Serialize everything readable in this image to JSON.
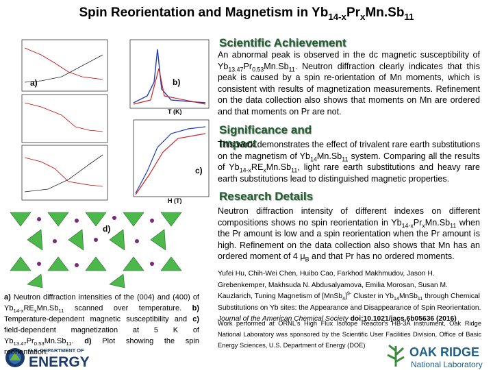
{
  "header": {
    "title": [
      {
        "text": "Spin Reorientation and Magnetism in Yb"
      },
      {
        "text": "14-x",
        "sub": true
      },
      {
        "text": "Pr"
      },
      {
        "text": "x",
        "sub": true
      },
      {
        "text": "Mn.Sb"
      },
      {
        "text": "11",
        "sub": true
      }
    ]
  },
  "sections": [
    {
      "heading": "Scientific Achievement",
      "body": [
        {
          "text": "An abnormal peak is observed in the dc magnetic susceptibility of Yb"
        },
        {
          "text": "13.47",
          "sub": true
        },
        {
          "text": "Pr"
        },
        {
          "text": "0.53",
          "sub": true
        },
        {
          "text": "Mn.Sb"
        },
        {
          "text": "11",
          "sub": true
        },
        {
          "text": ". Neutron diffraction clearly indicates that this peak is caused by a spin re-orientation of Mn moments, which is consistent with results of magnetization measurements. Refinement on the data collection also shows that moments on Mn are ordered and that moments on Pr are not."
        }
      ]
    },
    {
      "heading": "Significance and Impact",
      "body": [
        {
          "text": "This work demonstrates the effect of trivalent rare earth substitutions on the magnetism of Yb"
        },
        {
          "text": "14",
          "sub": true
        },
        {
          "text": "Mn.Sb"
        },
        {
          "text": "11",
          "sub": true
        },
        {
          "text": " system. Comparing all the results of Yb"
        },
        {
          "text": "14-x",
          "sub": true
        },
        {
          "text": "RE"
        },
        {
          "text": "x",
          "sub": true
        },
        {
          "text": "Mn.Sb"
        },
        {
          "text": "11",
          "sub": true
        },
        {
          "text": ", light rare earth substitutions and heavy rare earth substitutions lead to distinguished magnetic properties."
        }
      ]
    },
    {
      "heading": "Research Details",
      "body": [
        {
          "text": "Neutron diffraction intensity of different indexes on different compositions shows no spin reorientation in Yb"
        },
        {
          "text": "14-x",
          "sub": true
        },
        {
          "text": "Pr"
        },
        {
          "text": "x",
          "sub": true
        },
        {
          "text": "Mn.Sb"
        },
        {
          "text": "11",
          "sub": true
        },
        {
          "text": " when the Pr amount is low and a spin reorientation when the Pr amount is high. Refinement on the data collection also shows that Mn has an ordered moment of 4 μ"
        },
        {
          "text": "B",
          "sub": true
        },
        {
          "text": " and that Pr has no ordered moments."
        }
      ]
    }
  ],
  "reference": [
    {
      "text": "Yufei Hu, Chih-Wei Chen, Huibo Cao, Farkhod Makhmudov, Jason H. Grebenkemper, Makhsuda N. Abdusalyamova, Emilia Morosan, Susan M. Kauzlarich, Tuning Magnetism of [MnSb"
    },
    {
      "text": "4",
      "sub": true
    },
    {
      "text": "]"
    },
    {
      "text": "9-",
      "sup": true
    },
    {
      "text": " Cluster in Yb"
    },
    {
      "text": "14",
      "sub": true
    },
    {
      "text": "MnSb"
    },
    {
      "text": "11",
      "sub": true
    },
    {
      "text": " through Chemical Substitutions on Yb sites: the Appearance and Disappearance of Spin Reorientation. "
    },
    {
      "text": "Journal of the American Chemical Society",
      "italic": true
    },
    {
      "text": " doi:10.1021/jacs.6b05636 (2016)",
      "bold": true
    }
  ],
  "funding": "Work performed at ORNL's High Flux Isotope Reactor's HB-3A instrument, Oak Ridge National Laboratory was sponsored by the Scientific User Facilities Division, Office of Basic Energy Sciences, U.S. Department of Energy (DOE)",
  "caption": [
    {
      "text": "a)",
      "bold": true
    },
    {
      "text": " Neutron diffraction intensities of the (004) and (400) of Yb"
    },
    {
      "text": "14-x",
      "sub": true
    },
    {
      "text": "RE"
    },
    {
      "text": "x",
      "sub": true
    },
    {
      "text": "Mn.Sb"
    },
    {
      "text": "11",
      "sub": true
    },
    {
      "text": " scanned over temperature. "
    },
    {
      "text": "b)",
      "bold": true
    },
    {
      "text": " Temperature-dependent magnetic susceptibility and "
    },
    {
      "text": "c)",
      "bold": true
    },
    {
      "text": " field-dependent magnetization at 5 K of Yb"
    },
    {
      "text": "13.47",
      "sub": true
    },
    {
      "text": "Pr"
    },
    {
      "text": "0.53",
      "sub": true
    },
    {
      "text": "Mn.Sb"
    },
    {
      "text": "11",
      "sub": true
    },
    {
      "text": ". "
    },
    {
      "text": "d)",
      "bold": true
    },
    {
      "text": " Plot showing the spin reorientation."
    }
  ],
  "figure": {
    "labels": [
      "a)",
      "b)",
      "c)",
      "d)"
    ],
    "x_label_b": "T (K)",
    "x_label_c": "H (T)"
  },
  "logos": {
    "doe_top": "U.S. DEPARTMENT OF",
    "doe_main": "ENERGY",
    "ornl_main": "OAK RIDGE",
    "ornl_sub": "National Laboratory"
  }
}
